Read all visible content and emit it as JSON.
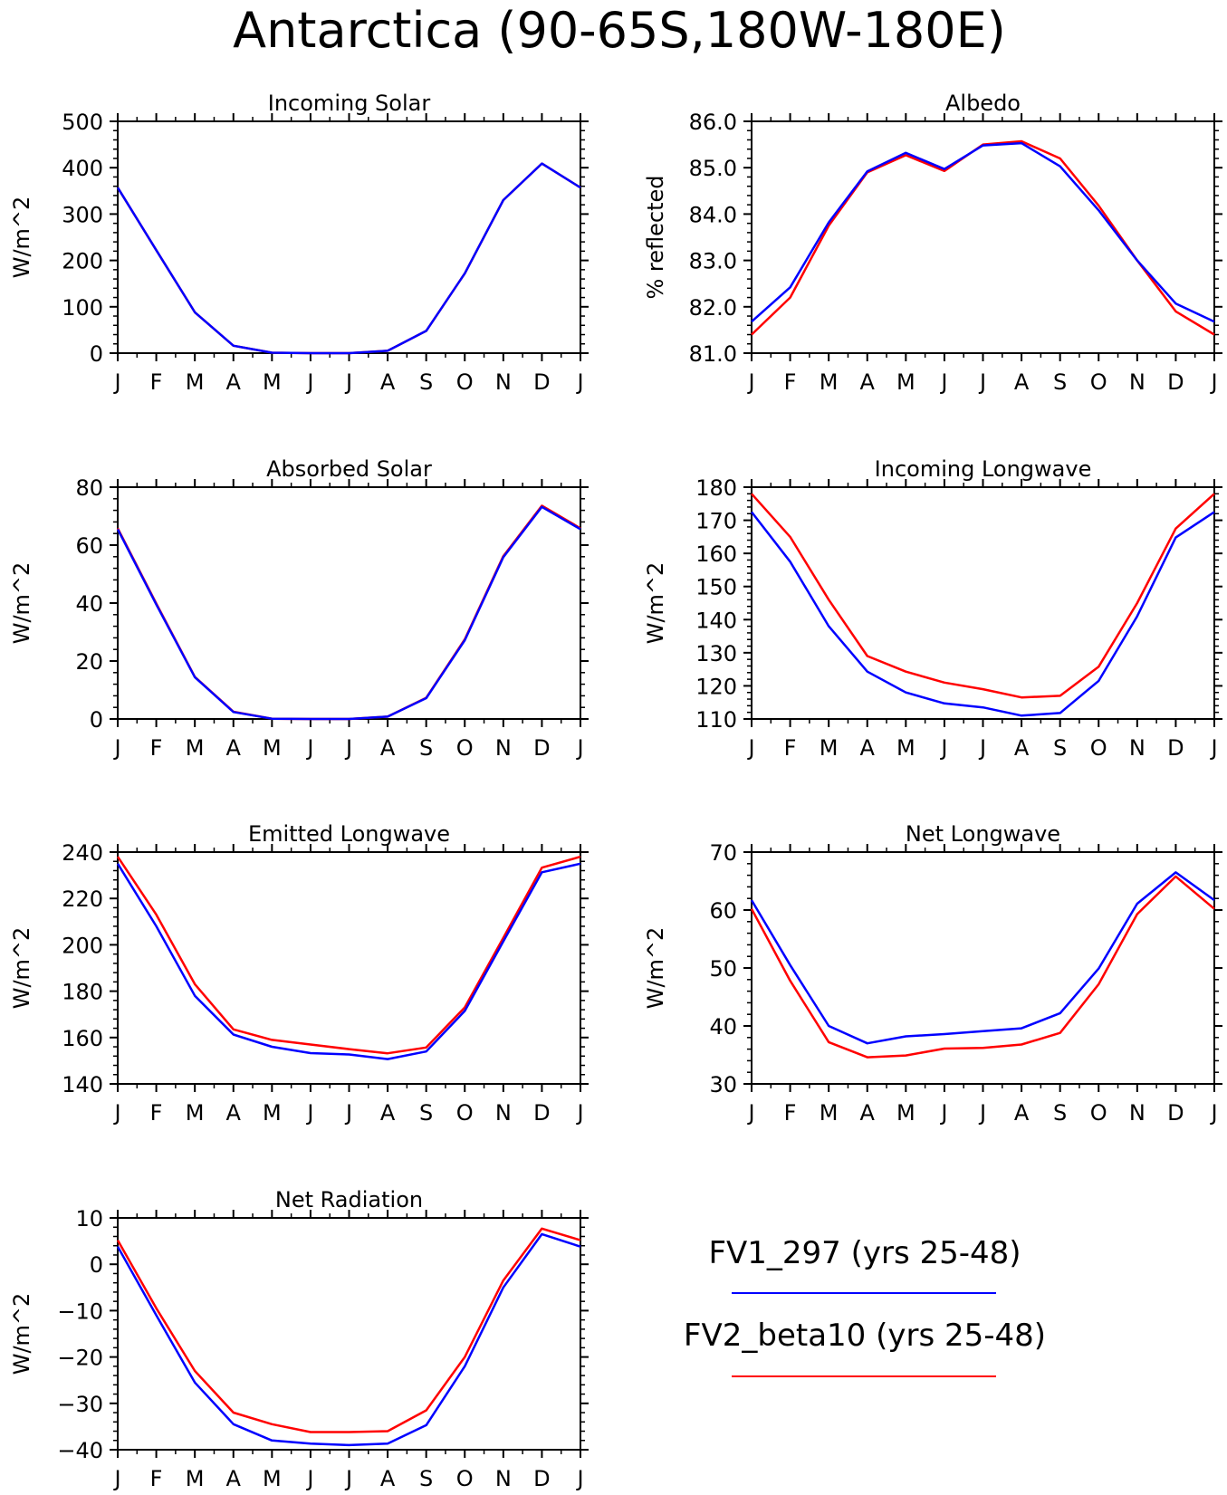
{
  "page_title": "Antarctica (90-65S,180W-180E)",
  "legend": {
    "items": [
      {
        "label": "FV1_297 (yrs 25-48)",
        "color": "#0000ff"
      },
      {
        "label": "FV2_beta10 (yrs 25-48)",
        "color": "#ff0000"
      }
    ]
  },
  "chart_data": [
    {
      "type": "line",
      "title": "Incoming Solar",
      "xlabel": "",
      "ylabel": "W/m^2",
      "categories": [
        "J",
        "F",
        "M",
        "A",
        "M",
        "J",
        "J",
        "A",
        "S",
        "O",
        "N",
        "D",
        "J"
      ],
      "ylim": [
        0,
        500
      ],
      "yticks": [
        0,
        100,
        200,
        300,
        400,
        500
      ],
      "ytick_labels": [
        "0",
        "100",
        "200",
        "300",
        "400",
        "500"
      ],
      "series": [
        {
          "name": "FV2_beta10 (yrs 25-48)",
          "color": "#ff0000",
          "values": [
            357,
            222,
            88,
            16,
            1,
            0,
            0,
            5,
            48,
            172,
            330,
            409,
            357
          ]
        },
        {
          "name": "FV1_297 (yrs 25-48)",
          "color": "#0000ff",
          "values": [
            357,
            222,
            88,
            16,
            1,
            0,
            0,
            5,
            48,
            172,
            330,
            409,
            357
          ]
        }
      ]
    },
    {
      "type": "line",
      "title": "Albedo",
      "xlabel": "",
      "ylabel": "% reflected",
      "categories": [
        "J",
        "F",
        "M",
        "A",
        "M",
        "J",
        "J",
        "A",
        "S",
        "O",
        "N",
        "D",
        "J"
      ],
      "ylim": [
        81.0,
        86.0
      ],
      "yticks": [
        81.0,
        82.0,
        83.0,
        84.0,
        85.0,
        86.0
      ],
      "ytick_labels": [
        "81.0",
        "82.0",
        "83.0",
        "84.0",
        "85.0",
        "86.0"
      ],
      "series": [
        {
          "name": "FV2_beta10 (yrs 25-48)",
          "color": "#ff0000",
          "values": [
            81.4,
            82.2,
            83.75,
            84.9,
            85.27,
            84.93,
            85.5,
            85.57,
            85.2,
            84.18,
            83.0,
            81.9,
            81.4
          ]
        },
        {
          "name": "FV1_297 (yrs 25-48)",
          "color": "#0000ff",
          "values": [
            81.68,
            82.42,
            83.82,
            84.92,
            85.32,
            84.97,
            85.48,
            85.53,
            85.03,
            84.08,
            83.0,
            82.07,
            81.68
          ]
        }
      ]
    },
    {
      "type": "line",
      "title": "Absorbed Solar",
      "xlabel": "",
      "ylabel": "W/m^2",
      "categories": [
        "J",
        "F",
        "M",
        "A",
        "M",
        "J",
        "J",
        "A",
        "S",
        "O",
        "N",
        "D",
        "J"
      ],
      "ylim": [
        0,
        80
      ],
      "yticks": [
        0,
        20,
        40,
        60,
        80
      ],
      "ytick_labels": [
        "0",
        "20",
        "40",
        "60",
        "80"
      ],
      "series": [
        {
          "name": "FV2_beta10 (yrs 25-48)",
          "color": "#ff0000",
          "values": [
            65.8,
            39.8,
            14.5,
            2.5,
            0.1,
            0,
            0,
            0.8,
            7.3,
            27.5,
            56.2,
            73.6,
            65.8
          ]
        },
        {
          "name": "FV1_297 (yrs 25-48)",
          "color": "#0000ff",
          "values": [
            65.5,
            39.5,
            14.4,
            2.4,
            0.1,
            0,
            0,
            0.8,
            7.2,
            27.2,
            55.8,
            73.2,
            65.5
          ]
        }
      ]
    },
    {
      "type": "line",
      "title": "Incoming Longwave",
      "xlabel": "",
      "ylabel": "W/m^2",
      "categories": [
        "J",
        "F",
        "M",
        "A",
        "M",
        "J",
        "J",
        "A",
        "S",
        "O",
        "N",
        "D",
        "J"
      ],
      "ylim": [
        110,
        180
      ],
      "yticks": [
        110,
        120,
        130,
        140,
        150,
        160,
        170,
        180
      ],
      "ytick_labels": [
        "110",
        "120",
        "130",
        "140",
        "150",
        "160",
        "170",
        "180"
      ],
      "series": [
        {
          "name": "FV2_beta10 (yrs 25-48)",
          "color": "#ff0000",
          "values": [
            178.0,
            165.0,
            146.0,
            129.0,
            124.3,
            121.0,
            119.0,
            116.5,
            117.0,
            125.8,
            145.0,
            167.5,
            178.0
          ]
        },
        {
          "name": "FV1_297 (yrs 25-48)",
          "color": "#0000ff",
          "values": [
            172.5,
            157.5,
            138.0,
            124.3,
            118.0,
            114.7,
            113.5,
            111.0,
            111.8,
            121.5,
            141.0,
            164.8,
            172.5
          ]
        }
      ]
    },
    {
      "type": "line",
      "title": "Emitted Longwave",
      "xlabel": "",
      "ylabel": "W/m^2",
      "categories": [
        "J",
        "F",
        "M",
        "A",
        "M",
        "J",
        "J",
        "A",
        "S",
        "O",
        "N",
        "D",
        "J"
      ],
      "ylim": [
        140,
        240
      ],
      "yticks": [
        140,
        160,
        180,
        200,
        220,
        240
      ],
      "ytick_labels": [
        "140",
        "160",
        "180",
        "200",
        "220",
        "240"
      ],
      "series": [
        {
          "name": "FV2_beta10 (yrs 25-48)",
          "color": "#ff0000",
          "values": [
            238.0,
            213.0,
            183.0,
            163.5,
            159.0,
            157.0,
            155.0,
            153.2,
            155.7,
            173.0,
            203.0,
            233.3,
            238.0
          ]
        },
        {
          "name": "FV1_297 (yrs 25-48)",
          "color": "#0000ff",
          "values": [
            235.0,
            208.0,
            178.0,
            161.3,
            156.0,
            153.3,
            152.7,
            150.7,
            154.0,
            171.5,
            201.5,
            231.3,
            235.0
          ]
        }
      ]
    },
    {
      "type": "line",
      "title": "Net Longwave",
      "xlabel": "",
      "ylabel": "W/m^2",
      "categories": [
        "J",
        "F",
        "M",
        "A",
        "M",
        "J",
        "J",
        "A",
        "S",
        "O",
        "N",
        "D",
        "J"
      ],
      "ylim": [
        30,
        70
      ],
      "yticks": [
        30,
        40,
        50,
        60,
        70
      ],
      "ytick_labels": [
        "30",
        "40",
        "50",
        "60",
        "70"
      ],
      "series": [
        {
          "name": "FV2_beta10 (yrs 25-48)",
          "color": "#ff0000",
          "values": [
            60.2,
            47.8,
            37.2,
            34.6,
            34.9,
            36.1,
            36.2,
            36.8,
            38.8,
            47.2,
            59.3,
            65.8,
            60.2
          ]
        },
        {
          "name": "FV1_297 (yrs 25-48)",
          "color": "#0000ff",
          "values": [
            61.7,
            50.5,
            40.0,
            37.0,
            38.2,
            38.6,
            39.1,
            39.6,
            42.2,
            49.9,
            61.1,
            66.5,
            61.7
          ]
        }
      ]
    },
    {
      "type": "line",
      "title": "Net Radiation",
      "xlabel": "",
      "ylabel": "W/m^2",
      "categories": [
        "J",
        "F",
        "M",
        "A",
        "M",
        "J",
        "J",
        "A",
        "S",
        "O",
        "N",
        "D",
        "J"
      ],
      "ylim": [
        -40,
        10
      ],
      "yticks": [
        -40,
        -30,
        -20,
        -10,
        0,
        10
      ],
      "ytick_labels": [
        "−40",
        "−30",
        "−20",
        "−10",
        "0",
        "10"
      ],
      "series": [
        {
          "name": "FV2_beta10 (yrs 25-48)",
          "color": "#ff0000",
          "values": [
            5.2,
            -9.5,
            -23.0,
            -32.0,
            -34.5,
            -36.2,
            -36.2,
            -36.0,
            -31.5,
            -20.0,
            -3.5,
            7.7,
            5.2
          ]
        },
        {
          "name": "FV1_297 (yrs 25-48)",
          "color": "#0000ff",
          "values": [
            3.8,
            -11.0,
            -25.5,
            -34.5,
            -38.0,
            -38.7,
            -39.0,
            -38.7,
            -34.7,
            -22.0,
            -5.0,
            6.5,
            3.8
          ]
        }
      ]
    }
  ]
}
